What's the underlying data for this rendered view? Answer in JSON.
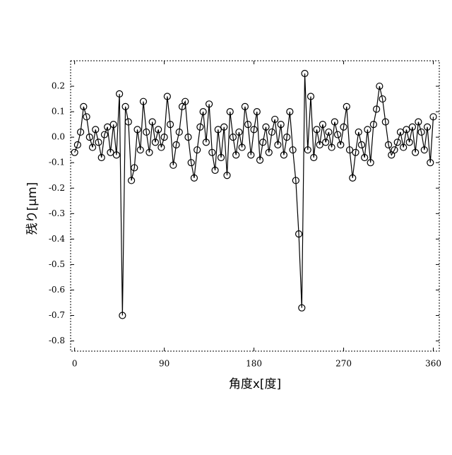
{
  "chart_data": {
    "type": "line",
    "xlabel": "角度x[度]",
    "ylabel": "残り[μm]",
    "x": [
      0,
      3,
      6,
      9,
      12,
      15,
      18,
      21,
      24,
      27,
      30,
      33,
      36,
      39,
      42,
      45,
      48,
      51,
      54,
      57,
      60,
      63,
      66,
      69,
      72,
      75,
      78,
      81,
      84,
      87,
      90,
      93,
      96,
      99,
      102,
      105,
      108,
      111,
      114,
      117,
      120,
      123,
      126,
      129,
      132,
      135,
      138,
      141,
      144,
      147,
      150,
      153,
      156,
      159,
      162,
      165,
      168,
      171,
      174,
      177,
      180,
      183,
      186,
      189,
      192,
      195,
      198,
      201,
      204,
      207,
      210,
      213,
      216,
      219,
      222,
      225,
      228,
      231,
      234,
      237,
      240,
      243,
      246,
      249,
      252,
      255,
      258,
      261,
      264,
      267,
      270,
      273,
      276,
      279,
      282,
      285,
      288,
      291,
      294,
      297,
      300,
      303,
      306,
      309,
      312,
      315,
      318,
      321,
      324,
      327,
      330,
      333,
      336,
      339,
      342,
      345,
      348,
      351,
      354,
      357,
      360
    ],
    "series": [
      {
        "color": "#000000",
        "values": [
          -0.06,
          -0.03,
          0.02,
          0.12,
          0.08,
          0.0,
          -0.04,
          0.03,
          -0.02,
          -0.08,
          0.01,
          0.04,
          -0.06,
          0.05,
          -0.07,
          0.17,
          -0.7,
          0.12,
          0.06,
          -0.17,
          -0.12,
          0.03,
          -0.05,
          0.14,
          0.02,
          -0.06,
          0.06,
          -0.02,
          0.03,
          -0.04,
          0.0,
          0.16,
          0.05,
          -0.11,
          -0.03,
          0.02,
          0.12,
          0.14,
          0.0,
          -0.1,
          -0.16,
          -0.05,
          0.04,
          0.1,
          -0.02,
          0.13,
          -0.06,
          -0.13,
          0.03,
          -0.08,
          0.04,
          -0.15,
          0.1,
          0.0,
          -0.07,
          0.02,
          -0.04,
          0.12,
          0.05,
          -0.07,
          0.03,
          0.1,
          -0.09,
          -0.02,
          0.04,
          -0.06,
          0.02,
          0.07,
          -0.03,
          0.05,
          -0.07,
          0.0,
          0.1,
          -0.05,
          -0.17,
          -0.38,
          -0.67,
          0.25,
          -0.05,
          0.16,
          -0.08,
          0.03,
          -0.03,
          0.05,
          -0.02,
          0.02,
          -0.04,
          0.06,
          0.01,
          -0.03,
          0.04,
          0.12,
          -0.05,
          -0.16,
          -0.06,
          0.02,
          -0.03,
          -0.08,
          0.03,
          -0.1,
          0.05,
          0.11,
          0.2,
          0.15,
          0.06,
          -0.03,
          -0.07,
          -0.05,
          -0.02,
          0.02,
          -0.04,
          0.03,
          -0.02,
          0.04,
          -0.06,
          0.06,
          0.02,
          -0.05,
          0.04,
          -0.1,
          0.08
        ]
      }
    ],
    "xlim": [
      -4,
      366
    ],
    "ylim": [
      -0.84,
      0.3
    ],
    "xticks": [
      0,
      90,
      180,
      270,
      360
    ],
    "yticks": [
      0.2,
      0.1,
      {
        "value": 0,
        "label": "0.0"
      },
      -0.1,
      -0.2,
      -0.3,
      -0.4,
      -0.5,
      -0.6,
      -0.7,
      -0.8
    ]
  }
}
